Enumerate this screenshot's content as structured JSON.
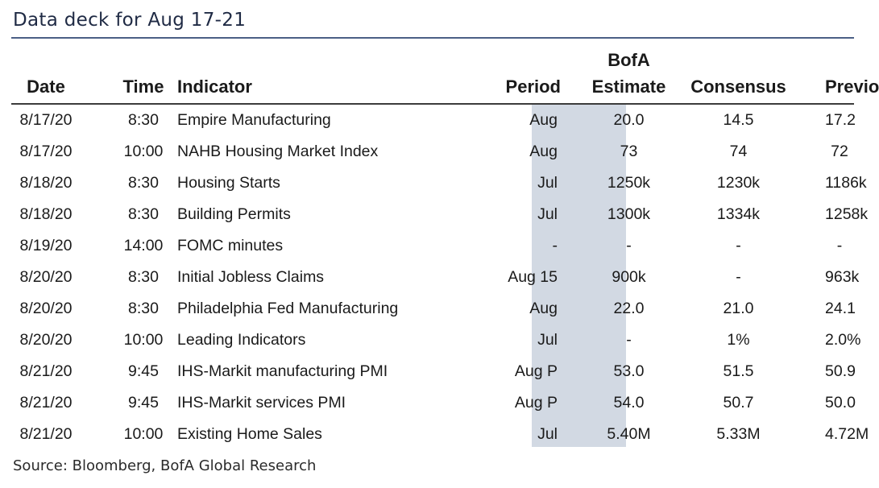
{
  "title": "Data deck for Aug 17-21",
  "headers": {
    "date": "Date",
    "time": "Time",
    "indicator": "Indicator",
    "period": "Period",
    "estimate_line1": "BofA",
    "estimate_line2": "Estimate",
    "consensus": "Consensus",
    "previous": "Previous"
  },
  "rows": [
    {
      "date": "8/17/20",
      "time": "8:30",
      "indicator": "Empire Manufacturing",
      "period": "Aug",
      "estimate": "20.0",
      "consensus": "14.5",
      "previous": "17.2"
    },
    {
      "date": "8/17/20",
      "time": "10:00",
      "indicator": "NAHB Housing Market Index",
      "period": "Aug",
      "estimate": "73",
      "consensus": "74",
      "previous": "72"
    },
    {
      "date": "8/18/20",
      "time": "8:30",
      "indicator": "Housing Starts",
      "period": "Jul",
      "estimate": "1250k",
      "consensus": "1230k",
      "previous": "1186k"
    },
    {
      "date": "8/18/20",
      "time": "8:30",
      "indicator": "Building Permits",
      "period": "Jul",
      "estimate": "1300k",
      "consensus": "1334k",
      "previous": "1258k"
    },
    {
      "date": "8/19/20",
      "time": "14:00",
      "indicator": "FOMC minutes",
      "period": "-",
      "estimate": "-",
      "consensus": "-",
      "previous": "-"
    },
    {
      "date": "8/20/20",
      "time": "8:30",
      "indicator": "Initial Jobless Claims",
      "period": "Aug 15",
      "estimate": "900k",
      "consensus": "-",
      "previous": "963k"
    },
    {
      "date": "8/20/20",
      "time": "8:30",
      "indicator": "Philadelphia Fed Manufacturing",
      "period": "Aug",
      "estimate": "22.0",
      "consensus": "21.0",
      "previous": "24.1"
    },
    {
      "date": "8/20/20",
      "time": "10:00",
      "indicator": "Leading Indicators",
      "period": "Jul",
      "estimate": "-",
      "consensus": "1%",
      "previous": "2.0%"
    },
    {
      "date": "8/21/20",
      "time": "9:45",
      "indicator": "IHS-Markit manufacturing PMI",
      "period": "Aug P",
      "estimate": "53.0",
      "consensus": "51.5",
      "previous": "50.9"
    },
    {
      "date": "8/21/20",
      "time": "9:45",
      "indicator": "IHS-Markit services PMI",
      "period": "Aug P",
      "estimate": "54.0",
      "consensus": "50.7",
      "previous": "50.0"
    },
    {
      "date": "8/21/20",
      "time": "10:00",
      "indicator": "Existing Home Sales",
      "period": "Jul",
      "estimate": "5.40M",
      "consensus": "5.33M",
      "previous": "4.72M"
    }
  ],
  "source": "Source: Bloomberg, BofA Global Research",
  "colors": {
    "estimate_highlight": "#d2d9e3",
    "title_rule": "#4b5f86",
    "title_text": "#1f2a44"
  }
}
